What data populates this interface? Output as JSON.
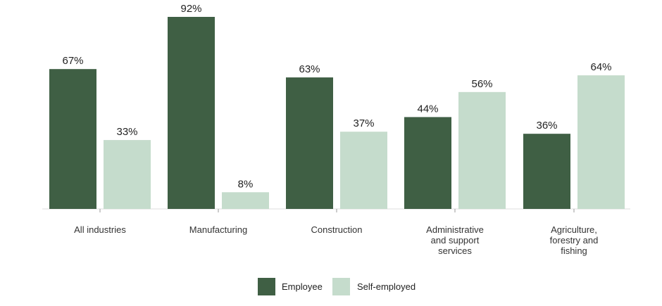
{
  "chart_data": {
    "type": "bar",
    "title": "",
    "xlabel": "",
    "ylabel": "",
    "ylim": [
      0,
      100
    ],
    "grid": false,
    "legend_position": "bottom-center",
    "value_suffix": "%",
    "categories": [
      [
        "All industries"
      ],
      [
        "Manufacturing"
      ],
      [
        "Construction"
      ],
      [
        "Administrative",
        "and support",
        "services"
      ],
      [
        "Agriculture,",
        "forestry and",
        "fishing"
      ]
    ],
    "series": [
      {
        "name": "Employee",
        "color": "#3f5f44",
        "values": [
          67,
          92,
          63,
          44,
          36
        ]
      },
      {
        "name": "Self-employed",
        "color": "#c5dccc",
        "values": [
          33,
          8,
          37,
          56,
          64
        ]
      }
    ]
  }
}
